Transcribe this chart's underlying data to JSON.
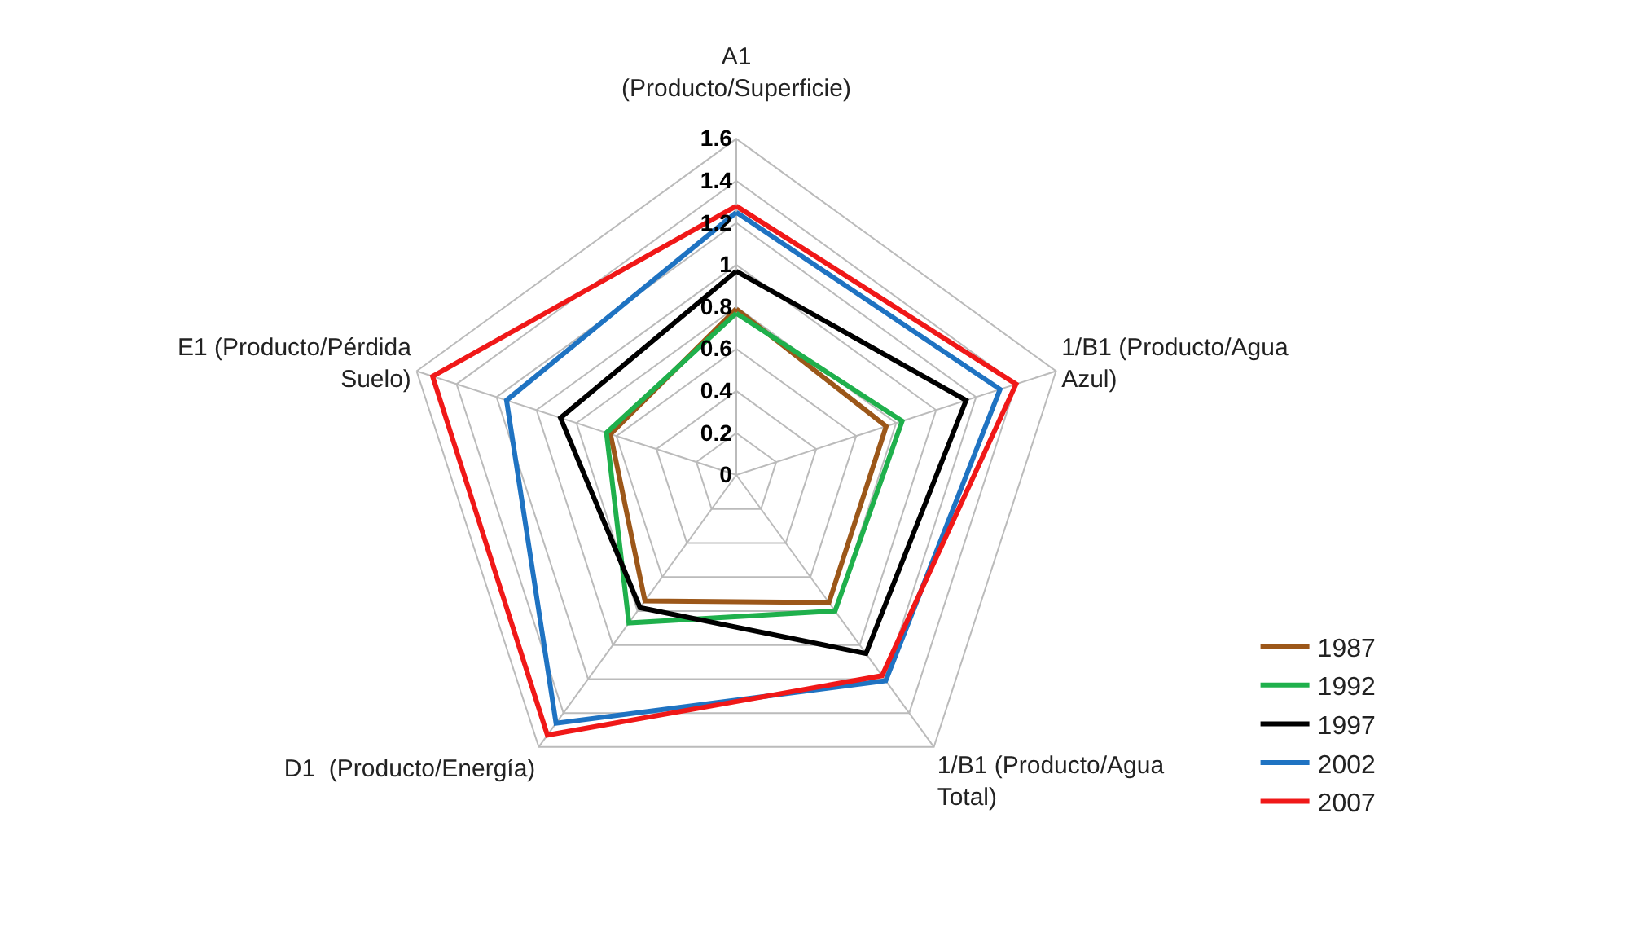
{
  "chart_data": {
    "type": "radar",
    "categories": [
      "A1\n(Producto/Superficie)",
      "1/B1 (Producto/Agua\nAzul)",
      "1/B1 (Producto/Agua\nTotal)",
      "D1  (Producto/Energía)",
      "E1 (Producto/Pérdida\nSuelo)"
    ],
    "series": [
      {
        "name": "1987",
        "color": "#9c5719",
        "values": [
          0.79,
          0.75,
          0.75,
          0.74,
          0.63
        ]
      },
      {
        "name": "1992",
        "color": "#1fb04c",
        "values": [
          0.77,
          0.83,
          0.8,
          0.87,
          0.65
        ]
      },
      {
        "name": "1997",
        "color": "#000000",
        "values": [
          0.97,
          1.15,
          1.05,
          0.78,
          0.88
        ]
      },
      {
        "name": "2002",
        "color": "#1f73c2",
        "values": [
          1.25,
          1.32,
          1.21,
          1.46,
          1.15
        ]
      },
      {
        "name": "2007",
        "color": "#f01818",
        "values": [
          1.28,
          1.4,
          1.18,
          1.53,
          1.52
        ]
      }
    ],
    "ylim": [
      0,
      1.6
    ],
    "yticks": [
      0,
      0.2,
      0.4,
      0.6,
      0.8,
      1,
      1.2,
      1.4,
      1.6
    ],
    "grid": true,
    "legend": "right",
    "marker": "none",
    "line_style": "solid"
  }
}
